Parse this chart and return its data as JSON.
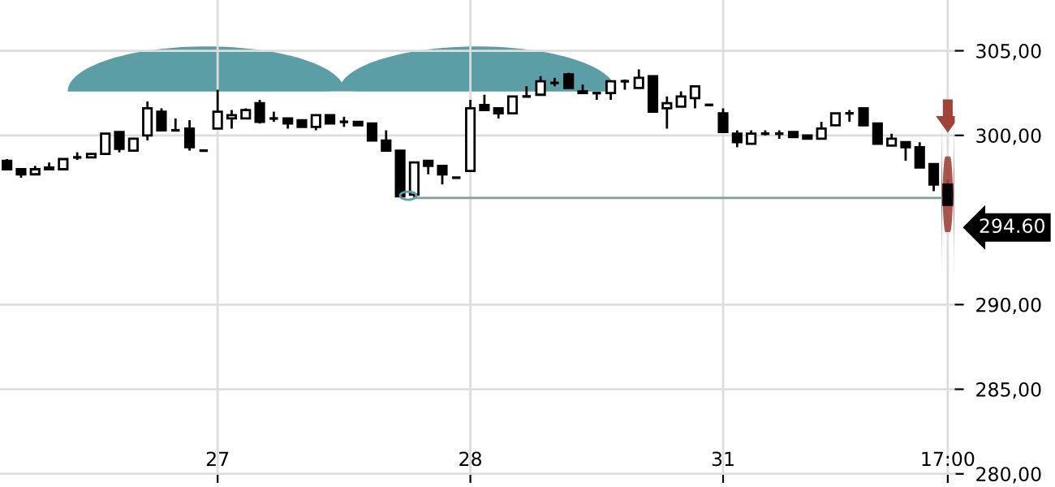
{
  "chart_data": {
    "type": "candlestick",
    "categories": [
      null,
      null,
      null,
      null,
      null,
      null,
      null,
      null,
      null,
      null,
      null,
      null,
      null,
      null,
      null,
      "27",
      null,
      null,
      null,
      null,
      null,
      null,
      null,
      null,
      null,
      null,
      null,
      null,
      null,
      null,
      null,
      null,
      null,
      "28",
      null,
      null,
      null,
      null,
      null,
      null,
      null,
      null,
      null,
      null,
      null,
      null,
      null,
      null,
      null,
      null,
      null,
      "31",
      null,
      null,
      null,
      null,
      null,
      null,
      null,
      null,
      null,
      null,
      null,
      null,
      null,
      null,
      null,
      "17:00"
    ],
    "ohlc": [
      [
        298.5,
        298.6,
        298.0,
        298.0
      ],
      [
        298.0,
        298.0,
        297.5,
        297.7
      ],
      [
        297.7,
        298.2,
        297.7,
        298.0
      ],
      [
        298.1,
        298.4,
        298.0,
        298.0
      ],
      [
        298.0,
        298.6,
        298.0,
        298.6
      ],
      [
        298.7,
        299.0,
        298.55,
        298.7
      ],
      [
        298.7,
        298.9,
        298.7,
        298.9
      ],
      [
        298.9,
        300.1,
        298.9,
        300.1
      ],
      [
        300.2,
        300.2,
        299.0,
        299.2
      ],
      [
        299.1,
        299.8,
        299.1,
        299.8
      ],
      [
        300.0,
        302.0,
        299.7,
        301.6
      ],
      [
        301.4,
        301.6,
        300.3,
        300.3
      ],
      [
        300.3,
        301.0,
        300.3,
        300.3
      ],
      [
        300.4,
        300.9,
        299.1,
        299.3
      ],
      [
        299.1,
        299.1,
        299.1,
        299.1
      ],
      [
        300.4,
        302.7,
        300.4,
        301.4
      ],
      [
        301.0,
        301.5,
        300.4,
        301.2
      ],
      [
        301.0,
        301.6,
        301.0,
        301.5
      ],
      [
        301.9,
        302.1,
        300.7,
        300.8
      ],
      [
        301.0,
        301.4,
        300.8,
        301.0
      ],
      [
        301.0,
        301.0,
        300.4,
        300.7
      ],
      [
        300.9,
        300.9,
        300.5,
        300.5
      ],
      [
        300.5,
        301.2,
        300.3,
        301.2
      ],
      [
        301.2,
        301.2,
        300.7,
        300.7
      ],
      [
        300.8,
        301.1,
        300.5,
        300.8
      ],
      [
        300.8,
        300.8,
        300.6,
        300.6
      ],
      [
        300.7,
        300.7,
        299.7,
        299.7
      ],
      [
        299.7,
        300.3,
        299.1,
        299.1
      ],
      [
        299.1,
        299.1,
        296.4,
        296.4
      ],
      [
        296.5,
        298.4,
        296.3,
        298.4
      ],
      [
        298.5,
        298.5,
        297.7,
        298.2
      ],
      [
        298.2,
        298.2,
        297.1,
        297.7
      ],
      [
        297.5,
        297.5,
        297.5,
        297.5
      ],
      [
        297.9,
        302.1,
        297.9,
        301.6
      ],
      [
        301.8,
        302.4,
        301.5,
        301.5
      ],
      [
        301.6,
        301.6,
        301.0,
        301.3
      ],
      [
        301.3,
        302.3,
        301.3,
        302.3
      ],
      [
        302.3,
        302.9,
        302.3,
        302.3
      ],
      [
        302.4,
        303.5,
        302.4,
        303.2
      ],
      [
        303.1,
        303.4,
        302.9,
        303.1
      ],
      [
        303.6,
        303.7,
        302.8,
        302.8
      ],
      [
        302.6,
        303.0,
        302.5,
        302.5
      ],
      [
        302.5,
        302.5,
        302.1,
        302.5
      ],
      [
        302.5,
        303.2,
        302.1,
        303.2
      ],
      [
        303.2,
        303.3,
        302.7,
        303.2
      ],
      [
        302.8,
        303.9,
        302.8,
        303.4
      ],
      [
        303.5,
        303.5,
        301.4,
        301.4
      ],
      [
        301.6,
        302.3,
        300.4,
        301.9
      ],
      [
        301.7,
        302.6,
        301.7,
        302.3
      ],
      [
        302.2,
        302.9,
        301.6,
        302.9
      ],
      [
        301.8,
        301.8,
        301.8,
        301.8
      ],
      [
        301.3,
        301.6,
        300.2,
        300.2
      ],
      [
        300.1,
        300.3,
        299.3,
        299.6
      ],
      [
        299.5,
        300.3,
        299.5,
        300.1
      ],
      [
        300.1,
        300.3,
        300.0,
        300.1
      ],
      [
        300.1,
        300.3,
        299.8,
        300.1
      ],
      [
        300.2,
        300.2,
        299.9,
        299.9
      ],
      [
        300.0,
        300.0,
        299.8,
        299.8
      ],
      [
        299.8,
        300.8,
        299.8,
        300.4
      ],
      [
        300.6,
        301.3,
        300.6,
        301.3
      ],
      [
        301.3,
        301.5,
        300.8,
        301.3
      ],
      [
        301.6,
        301.6,
        300.6,
        300.6
      ],
      [
        300.7,
        300.7,
        299.5,
        299.5
      ],
      [
        299.4,
        300.1,
        299.4,
        299.8
      ],
      [
        299.6,
        299.6,
        298.5,
        299.3
      ],
      [
        299.3,
        299.6,
        298.1,
        298.1
      ],
      [
        298.3,
        298.3,
        296.7,
        297.1
      ],
      [
        297.1,
        297.4,
        295.9,
        295.9
      ]
    ],
    "series": [
      {
        "type": "line",
        "color": "#7d9ea2",
        "values": [
          null,
          null,
          null,
          null,
          null,
          null,
          null,
          null,
          null,
          null,
          null,
          null,
          null,
          null,
          null,
          null,
          null,
          null,
          null,
          null,
          null,
          null,
          null,
          null,
          null,
          null,
          null,
          null,
          null,
          296.3,
          296.3,
          296.3,
          296.3,
          296.3,
          296.3,
          296.3,
          296.3,
          296.3,
          296.3,
          296.3,
          296.3,
          296.3,
          296.3,
          296.3,
          296.3,
          296.3,
          296.3,
          296.3,
          296.3,
          296.3,
          296.3,
          296.3,
          296.3,
          296.3,
          296.3,
          296.3,
          296.3,
          296.3,
          296.3,
          296.3,
          296.3,
          296.3,
          296.3,
          296.3,
          296.3,
          296.3,
          296.3,
          296.3
        ]
      }
    ],
    "ylim": [
      280,
      308
    ],
    "yticks": [
      {
        "value": 280,
        "label": "280,00"
      },
      {
        "value": 285,
        "label": "285,00"
      },
      {
        "value": 290,
        "label": "290,00"
      },
      {
        "value": 300,
        "label": "300,00"
      },
      {
        "value": 305,
        "label": "305,00"
      }
    ],
    "grid": true,
    "annotations": [
      "294.60"
    ]
  }
}
